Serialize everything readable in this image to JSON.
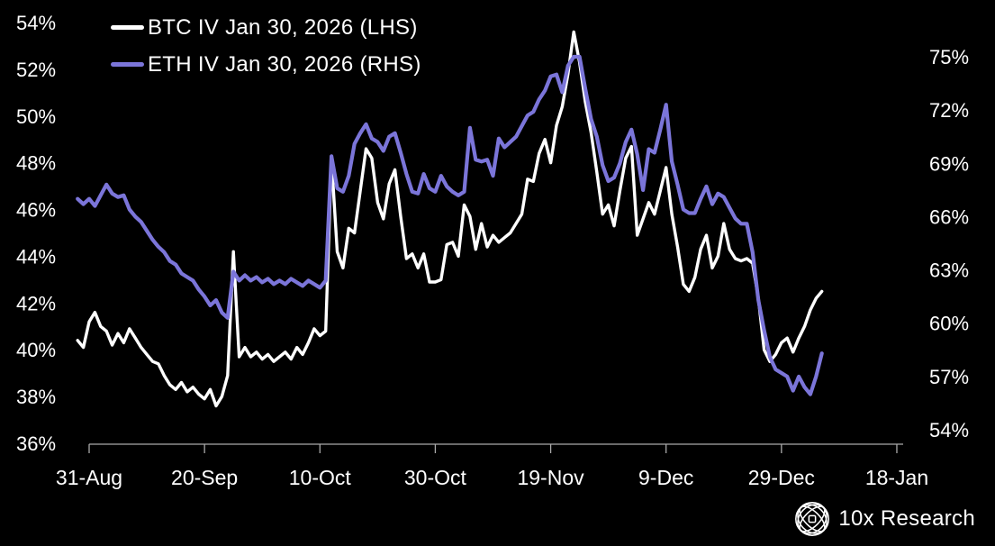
{
  "colors": {
    "background": "#000000",
    "btc_line": "#ffffff",
    "eth_line": "#7b75d9",
    "axis": "#aaaaaa",
    "text": "#ffffff"
  },
  "legend": [
    {
      "label": "BTC IV Jan 30, 2026 (LHS)",
      "color": "#ffffff"
    },
    {
      "label": "ETH IV Jan 30, 2026 (RHS)",
      "color": "#7b75d9"
    }
  ],
  "branding": {
    "logo_icon": "globe-lattice-icon",
    "name": "10x Research"
  },
  "chart_data": {
    "type": "line",
    "grid": false,
    "legend_position": "top-left",
    "x": {
      "tick_labels": [
        "31-Aug",
        "20-Sep",
        "10-Oct",
        "30-Oct",
        "19-Nov",
        "9-Dec",
        "29-Dec",
        "18-Jan"
      ],
      "tick_days": [
        0,
        20,
        40,
        60,
        80,
        100,
        120,
        140
      ],
      "unit": "daily"
    },
    "y_left": {
      "labels": [
        "54%",
        "52%",
        "50%",
        "48%",
        "46%",
        "44%",
        "42%",
        "40%",
        "38%",
        "36%"
      ],
      "values": [
        54,
        52,
        50,
        48,
        46,
        44,
        42,
        40,
        38,
        36
      ],
      "min": 36,
      "max": 54
    },
    "y_right": {
      "labels": [
        "75%",
        "72%",
        "69%",
        "66%",
        "63%",
        "60%",
        "57%",
        "54%"
      ],
      "values": [
        75,
        72,
        69,
        66,
        63,
        60,
        57,
        54
      ],
      "min": 54,
      "max": 75
    },
    "series": [
      {
        "id": "btc",
        "name": "BTC IV Jan 30, 2026 (LHS)",
        "axis": "left",
        "color": "#ffffff",
        "start_day": -2,
        "values": [
          40.4,
          40.1,
          41.2,
          41.6,
          41.0,
          40.8,
          40.2,
          40.7,
          40.3,
          40.9,
          40.5,
          40.1,
          39.8,
          39.5,
          39.4,
          38.9,
          38.5,
          38.3,
          38.6,
          38.2,
          38.4,
          38.1,
          37.9,
          38.3,
          37.6,
          38.0,
          38.9,
          44.2,
          39.7,
          40.1,
          39.7,
          39.9,
          39.6,
          39.8,
          39.5,
          39.7,
          39.9,
          39.6,
          40.1,
          39.8,
          40.3,
          40.9,
          40.6,
          40.8,
          48.2,
          44.2,
          43.5,
          45.2,
          45.0,
          46.8,
          48.6,
          48.2,
          46.3,
          45.6,
          47.1,
          47.7,
          45.7,
          43.9,
          44.1,
          43.5,
          44.1,
          42.9,
          42.9,
          43.0,
          44.5,
          44.6,
          44.0,
          46.2,
          45.7,
          44.3,
          45.4,
          44.4,
          44.9,
          44.6,
          44.8,
          45.0,
          45.4,
          45.8,
          47.3,
          47.2,
          48.4,
          49.0,
          48.0,
          49.6,
          50.4,
          51.8,
          53.6,
          52.3,
          50.6,
          49.3,
          47.6,
          45.8,
          46.2,
          45.3,
          46.8,
          48.2,
          48.7,
          44.9,
          45.6,
          46.3,
          45.8,
          46.8,
          47.8,
          45.8,
          44.4,
          42.8,
          42.5,
          43.1,
          44.3,
          44.9,
          43.5,
          44.0,
          45.4,
          44.3,
          43.9,
          43.8,
          43.9,
          43.7,
          42.2,
          40.0,
          39.5,
          39.8,
          40.3,
          40.5,
          39.9,
          40.5,
          41.0,
          41.7,
          42.2,
          42.5
        ]
      },
      {
        "id": "eth",
        "name": "ETH IV Jan 30, 2026 (RHS)",
        "axis": "right",
        "color": "#7b75d9",
        "start_day": -2,
        "values": [
          67.0,
          66.7,
          67.0,
          66.6,
          67.2,
          67.8,
          67.3,
          67.1,
          67.2,
          66.4,
          66.0,
          65.7,
          65.2,
          64.7,
          64.3,
          64.0,
          63.5,
          63.3,
          62.8,
          62.6,
          62.4,
          61.9,
          61.5,
          61.0,
          61.3,
          60.6,
          60.3,
          62.9,
          62.4,
          62.7,
          62.4,
          62.6,
          62.3,
          62.5,
          62.2,
          62.4,
          62.2,
          62.5,
          62.3,
          62.1,
          62.4,
          62.2,
          62.0,
          62.4,
          69.4,
          67.6,
          67.4,
          68.3,
          70.1,
          70.7,
          71.2,
          70.4,
          70.2,
          69.7,
          70.5,
          70.7,
          69.6,
          68.4,
          67.4,
          67.3,
          68.4,
          67.6,
          67.4,
          68.3,
          67.7,
          67.4,
          67.2,
          67.4,
          71.0,
          69.2,
          69.1,
          69.2,
          68.3,
          70.4,
          69.9,
          70.2,
          70.5,
          71.1,
          71.7,
          71.9,
          72.6,
          73.1,
          73.9,
          74.0,
          73.0,
          74.5,
          75.0,
          75.0,
          73.2,
          71.5,
          70.5,
          68.9,
          68.0,
          68.2,
          69.0,
          70.2,
          70.9,
          69.5,
          67.5,
          69.8,
          69.6,
          70.9,
          72.3,
          69.1,
          67.8,
          66.4,
          66.2,
          66.2,
          67.0,
          67.7,
          66.7,
          67.3,
          67.1,
          66.5,
          65.9,
          65.6,
          65.6,
          64.0,
          61.3,
          59.6,
          58.1,
          57.4,
          57.2,
          57.0,
          56.2,
          57.0,
          56.4,
          56.0,
          57.0,
          58.3
        ]
      }
    ]
  }
}
